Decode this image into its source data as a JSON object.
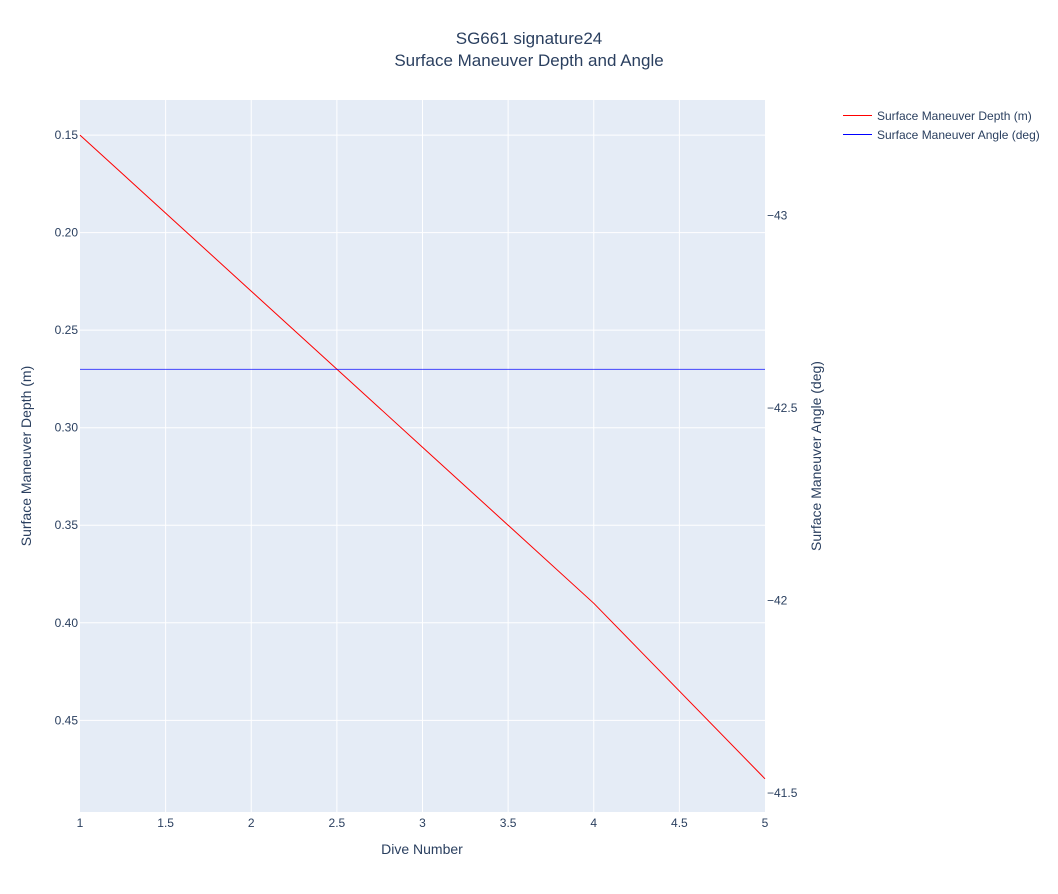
{
  "chart_data": {
    "type": "line",
    "title": "SG661 signature24",
    "subtitle": "Surface Maneuver Depth and Angle",
    "xlabel": "Dive Number",
    "y1label": "Surface Maneuver Depth (m)",
    "y2label": "Surface Maneuver Angle (deg)",
    "x": [
      1,
      2,
      3,
      4,
      5
    ],
    "xlim": [
      1,
      5
    ],
    "xticks": [
      "1",
      "1.5",
      "2",
      "2.5",
      "3",
      "3.5",
      "4",
      "4.5",
      "5"
    ],
    "y1lim": [
      0.132,
      0.497
    ],
    "y1_reversed": true,
    "y1ticks": [
      "0.15",
      "0.20",
      "0.25",
      "0.30",
      "0.35",
      "0.40",
      "0.45"
    ],
    "y2lim": [
      -43.3,
      -41.45
    ],
    "y2_reversed": true,
    "y2ticks": [
      "−43",
      "−42.5",
      "−42",
      "−41.5"
    ],
    "series": [
      {
        "name": "Surface Maneuver Depth (m)",
        "axis": "y1",
        "color": "#ff0000",
        "values": [
          0.15,
          0.23,
          0.31,
          0.39,
          0.48
        ]
      },
      {
        "name": "Surface Maneuver Angle (deg)",
        "axis": "y2",
        "color": "#0000ff",
        "values": [
          -42.6,
          -42.6,
          -42.6,
          -42.6,
          -42.6
        ]
      }
    ],
    "grid": true,
    "legend_position": "top-right",
    "plot_background": "#e5ecf6"
  }
}
